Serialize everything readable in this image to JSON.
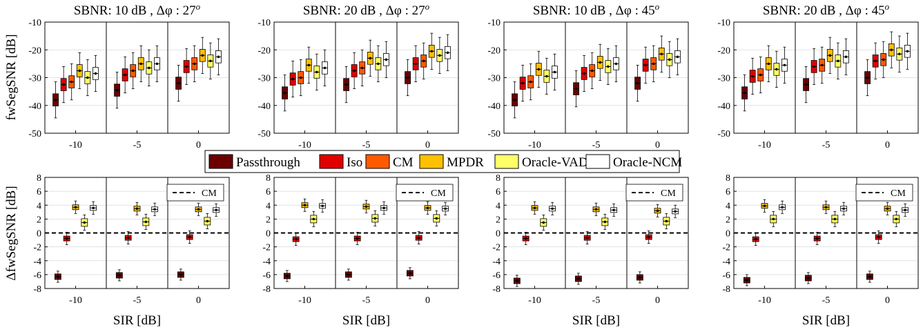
{
  "figure": {
    "ylabel_top": "fwSegSNR [dB]",
    "ylabel_bottom": "ΔfwSegSNR [dB]",
    "xlabel": "SIR [dB]",
    "legend": [
      {
        "name": "Passthrough",
        "color": "#6b0000"
      },
      {
        "name": "Iso",
        "color": "#e00000"
      },
      {
        "name": "CM",
        "color": "#ff5a00"
      },
      {
        "name": "MPDR",
        "color": "#ffc000"
      },
      {
        "name": "Oracle-VAD",
        "color": "#ffff66"
      },
      {
        "name": "Oracle-NCM",
        "color": "#ffffff"
      }
    ],
    "cm_legend": "CM"
  },
  "chart_data": [
    {
      "type": "box",
      "title": "SBNR: 10 dB , Δφ : 27",
      "title_sup": "o",
      "ylabel": "fwSegSNR [dB]",
      "ylim": [
        -50,
        -10
      ],
      "yticks": [
        -50,
        -40,
        -30,
        -20,
        -10
      ],
      "categories": [
        "-10",
        "-5",
        "0"
      ],
      "grid": true,
      "series_order": [
        "Passthrough",
        "Iso",
        "CM",
        "MPDR",
        "Oracle-VAD",
        "Oracle-NCM"
      ],
      "medians": [
        [
          -38,
          -32.5,
          -31.5,
          -27.5,
          -30,
          -28.5
        ],
        [
          -34.5,
          -29,
          -27.5,
          -25,
          -26.5,
          -25
        ],
        [
          -32,
          -26,
          -25,
          -22,
          -24,
          -22.5
        ]
      ]
    },
    {
      "type": "box",
      "title": "SBNR: 20 dB , Δφ : 27",
      "title_sup": "o",
      "ylabel": "",
      "ylim": [
        -50,
        -10
      ],
      "yticks": [
        -50,
        -40,
        -30,
        -20,
        -10
      ],
      "categories": [
        "-10",
        "-5",
        "0"
      ],
      "grid": true,
      "series_order": [
        "Passthrough",
        "Iso",
        "CM",
        "MPDR",
        "Oracle-VAD",
        "Oracle-NCM"
      ],
      "medians": [
        [
          -35.5,
          -30.5,
          -30,
          -25.5,
          -28,
          -26.5
        ],
        [
          -32.5,
          -27.5,
          -26.5,
          -23,
          -25,
          -23.5
        ],
        [
          -30,
          -25,
          -24,
          -20.5,
          -22,
          -21
        ]
      ]
    },
    {
      "type": "box",
      "title": "SBNR: 10 dB , Δφ : 45",
      "title_sup": "o",
      "ylabel": "",
      "ylim": [
        -50,
        -10
      ],
      "yticks": [
        -50,
        -40,
        -30,
        -20,
        -10
      ],
      "categories": [
        "-10",
        "-5",
        "0"
      ],
      "grid": true,
      "series_order": [
        "Passthrough",
        "Iso",
        "CM",
        "MPDR",
        "Oracle-VAD",
        "Oracle-NCM"
      ],
      "medians": [
        [
          -38,
          -32,
          -31.5,
          -27,
          -29.5,
          -28
        ],
        [
          -34,
          -28.5,
          -27.5,
          -24.5,
          -26,
          -25
        ],
        [
          -32,
          -25.5,
          -25,
          -21.5,
          -23.5,
          -22.5
        ]
      ]
    },
    {
      "type": "box",
      "title": "SBNR: 20 dB , Δφ : 45",
      "title_sup": "o",
      "ylabel": "",
      "ylim": [
        -50,
        -10
      ],
      "yticks": [
        -50,
        -40,
        -30,
        -20,
        -10
      ],
      "categories": [
        "-10",
        "-5",
        "0"
      ],
      "grid": true,
      "series_order": [
        "Passthrough",
        "Iso",
        "CM",
        "MPDR",
        "Oracle-VAD",
        "Oracle-NCM"
      ],
      "medians": [
        [
          -35.5,
          -29.5,
          -29,
          -25,
          -27,
          -25.5
        ],
        [
          -32.5,
          -26,
          -25.5,
          -22,
          -24,
          -22.5
        ],
        [
          -30,
          -24,
          -23.5,
          -20,
          -21.5,
          -20.5
        ]
      ]
    },
    {
      "type": "box",
      "title": "",
      "ylabel": "ΔfwSegSNR [dB]",
      "xlabel": "SIR [dB]",
      "ylim": [
        -8,
        8
      ],
      "yticks": [
        -8,
        -6,
        -4,
        -2,
        0,
        2,
        4,
        6,
        8
      ],
      "categories": [
        "-10",
        "-5",
        "0"
      ],
      "grid": true,
      "reference_line": {
        "name": "CM",
        "y": 0
      },
      "series_order": [
        "Passthrough",
        "Iso",
        "MPDR",
        "Oracle-VAD",
        "Oracle-NCM"
      ],
      "medians": [
        [
          -6.3,
          -0.8,
          3.7,
          1.5,
          3.6
        ],
        [
          -6.1,
          -0.7,
          3.5,
          1.6,
          3.4
        ],
        [
          -6.0,
          -0.6,
          3.4,
          1.7,
          3.3
        ]
      ]
    },
    {
      "type": "box",
      "title": "",
      "ylabel": "",
      "xlabel": "SIR [dB]",
      "ylim": [
        -8,
        8
      ],
      "yticks": [
        -8,
        -6,
        -4,
        -2,
        0,
        2,
        4,
        6,
        8
      ],
      "categories": [
        "-10",
        "-5",
        "0"
      ],
      "grid": true,
      "reference_line": {
        "name": "CM",
        "y": 0
      },
      "series_order": [
        "Passthrough",
        "Iso",
        "MPDR",
        "Oracle-VAD",
        "Oracle-NCM"
      ],
      "medians": [
        [
          -6.2,
          -0.9,
          4.0,
          2.0,
          3.9
        ],
        [
          -6.0,
          -0.8,
          3.8,
          2.1,
          3.6
        ],
        [
          -5.8,
          -0.7,
          3.6,
          2.1,
          3.5
        ]
      ]
    },
    {
      "type": "box",
      "title": "",
      "ylabel": "",
      "xlabel": "SIR [dB]",
      "ylim": [
        -8,
        8
      ],
      "yticks": [
        -8,
        -6,
        -4,
        -2,
        0,
        2,
        4,
        6,
        8
      ],
      "categories": [
        "-10",
        "-5",
        "0"
      ],
      "grid": true,
      "reference_line": {
        "name": "CM",
        "y": 0
      },
      "series_order": [
        "Passthrough",
        "Iso",
        "MPDR",
        "Oracle-VAD",
        "Oracle-NCM"
      ],
      "medians": [
        [
          -6.9,
          -0.8,
          3.6,
          1.5,
          3.5
        ],
        [
          -6.6,
          -0.7,
          3.4,
          1.6,
          3.3
        ],
        [
          -6.4,
          -0.6,
          3.2,
          1.7,
          3.1
        ]
      ]
    },
    {
      "type": "box",
      "title": "",
      "ylabel": "",
      "xlabel": "SIR [dB]",
      "ylim": [
        -8,
        8
      ],
      "yticks": [
        -8,
        -6,
        -4,
        -2,
        0,
        2,
        4,
        6,
        8
      ],
      "categories": [
        "-10",
        "-5",
        "0"
      ],
      "grid": true,
      "reference_line": {
        "name": "CM",
        "y": 0
      },
      "series_order": [
        "Passthrough",
        "Iso",
        "MPDR",
        "Oracle-VAD",
        "Oracle-NCM"
      ],
      "medians": [
        [
          -6.8,
          -0.9,
          3.9,
          2.0,
          3.7
        ],
        [
          -6.5,
          -0.8,
          3.7,
          2.0,
          3.5
        ],
        [
          -6.3,
          -0.6,
          3.5,
          2.0,
          3.3
        ]
      ]
    }
  ]
}
